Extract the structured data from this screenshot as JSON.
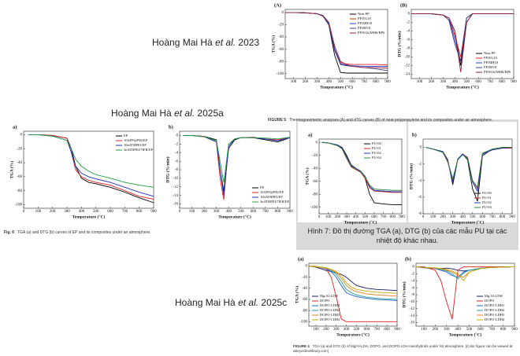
{
  "authors": [
    [
      "Hoàng Mai Hà",
      "et al.",
      "2023"
    ],
    [
      "Hoàng Mai Hà",
      "et al.",
      "2025a"
    ],
    [
      "Hoàng Mai Hà",
      "et al.",
      "2025c"
    ]
  ],
  "captions": [
    {
      "label": "FIGURE 5",
      "text": "Thermogravimetric analyses (A) and dTG curves (B) of neat polypropylene and its composites under air atmosphere."
    },
    {
      "label": "Fig. 6",
      "text": "TGA (a) and DTG (b) curves of EP and its composites under air atmosphere."
    },
    {
      "label": "Hình 7:",
      "text": "Đồ thị đường TGA (a), DTG (b) của các mẫu PU tại các nhiệt độ khác nhau."
    },
    {
      "label": "FIGURE 4",
      "text": "TGA (a) and DTG (b) of Mg/Al-LDH, DOPO, and DOPO-LDH nanohybrids under N2 atmosphere. [Color figure can be viewed at wileyonlinelibrary.com]"
    }
  ],
  "chart_data": [
    {
      "type": "line",
      "panel": "(A)",
      "xlabel": "Temperature (°C)",
      "ylabel": "TGA (%)",
      "legend": "upper right",
      "x": [
        30,
        100,
        200,
        300,
        350,
        400,
        450,
        500,
        550,
        600,
        700,
        800,
        900
      ],
      "xlim": [
        30,
        900
      ],
      "xticks": [
        100,
        200,
        300,
        400,
        500,
        600,
        700,
        800,
        900
      ],
      "ylim": [
        -108,
        5
      ],
      "yticks": [
        0,
        -20,
        -40,
        -60,
        -80,
        -100
      ],
      "series": [
        {
          "name": "Neat PP",
          "color": "#000000",
          "values": [
            0,
            0,
            -0.5,
            -2,
            -5,
            -20,
            -70,
            -98,
            -99,
            -99,
            -99,
            -99,
            -99
          ]
        },
        {
          "name": "PP/EG18",
          "color": "#e02020",
          "values": [
            0,
            0,
            -0.5,
            -2,
            -5,
            -18,
            -60,
            -82,
            -84,
            -85,
            -85,
            -85,
            -86
          ]
        },
        {
          "name": "PP/MH18",
          "color": "#2040d0",
          "values": [
            0,
            0,
            -0.5,
            -2,
            -5,
            -18,
            -60,
            -84,
            -86,
            -87,
            -88,
            -88,
            -88
          ]
        },
        {
          "name": "PP/RP18",
          "color": "#404080",
          "values": [
            0,
            0,
            -0.5,
            -2,
            -6,
            -20,
            -62,
            -85,
            -87,
            -88,
            -90,
            -92,
            -95
          ]
        },
        {
          "name": "PP/EG6/MH6/RP6",
          "color": "#902040",
          "values": [
            0,
            0,
            -0.5,
            -2,
            -5,
            -16,
            -55,
            -80,
            -85,
            -88,
            -90,
            -90,
            -91
          ]
        }
      ]
    },
    {
      "type": "line",
      "panel": "(B)",
      "xlabel": "Temperature (°C)",
      "ylabel": "DTG (%/min)",
      "legend": "lower right",
      "x": [
        30,
        100,
        200,
        300,
        350,
        400,
        450,
        500,
        550,
        600,
        700,
        800,
        900
      ],
      "xlim": [
        30,
        900
      ],
      "xticks": [
        100,
        200,
        300,
        400,
        500,
        600,
        700,
        800,
        900
      ],
      "ylim": [
        -15,
        1
      ],
      "yticks": [
        0,
        -2,
        -4,
        -6,
        -8,
        -10,
        -12,
        -14
      ],
      "series": [
        {
          "name": "Neat PP",
          "color": "#000000",
          "values": [
            0,
            0,
            0,
            -0.3,
            -1,
            -4,
            -12,
            -2,
            0,
            0,
            0,
            0,
            0
          ]
        },
        {
          "name": "PP/EG18",
          "color": "#e02020",
          "values": [
            0,
            0,
            0,
            -0.3,
            -1,
            -5,
            -10,
            -1,
            0,
            0,
            0,
            0,
            0
          ]
        },
        {
          "name": "PP/MH18",
          "color": "#2040d0",
          "values": [
            0,
            0,
            0,
            -0.3,
            -1,
            -6,
            -11,
            -1,
            0,
            0,
            0,
            0,
            0
          ]
        },
        {
          "name": "PP/RP18",
          "color": "#404080",
          "values": [
            0,
            0,
            0,
            -0.3,
            -1.5,
            -7,
            -11,
            -1,
            0,
            0,
            0,
            0,
            0
          ]
        },
        {
          "name": "PP/EG6/MH6/RP6",
          "color": "#902040",
          "values": [
            0,
            0,
            0,
            -0.3,
            -1,
            -4,
            -13.5,
            -2,
            0,
            0,
            0,
            0,
            0
          ]
        }
      ]
    },
    {
      "type": "line",
      "panel": "a)",
      "xlabel": "Temperature (°C)",
      "ylabel": "TGA (%)",
      "legend": "upper right",
      "x": [
        30,
        100,
        200,
        300,
        330,
        360,
        400,
        450,
        500,
        600,
        700,
        800,
        900
      ],
      "xlim": [
        0,
        900
      ],
      "xticks": [
        0,
        100,
        200,
        300,
        400,
        500,
        600,
        700,
        800,
        900
      ],
      "ylim": [
        -105,
        5
      ],
      "yticks": [
        0,
        -20,
        -40,
        -60,
        -80,
        -100
      ],
      "series": [
        {
          "name": "EP",
          "color": "#000000",
          "values": [
            0,
            0,
            -1,
            -5,
            -20,
            -45,
            -62,
            -68,
            -70,
            -75,
            -82,
            -90,
            -97
          ]
        },
        {
          "name": "10APP@PEI/EP",
          "color": "#e02020",
          "values": [
            0,
            0,
            -1,
            -5,
            -25,
            -50,
            -60,
            -65,
            -68,
            -72,
            -80,
            -88,
            -92
          ]
        },
        {
          "name": "10nATHPEI/EP",
          "color": "#2030c0",
          "values": [
            0,
            0,
            -2,
            -8,
            -25,
            -45,
            -55,
            -60,
            -63,
            -68,
            -75,
            -82,
            -88
          ]
        },
        {
          "name": "3nATHPEI/7IFR/EP",
          "color": "#20a040",
          "values": [
            0,
            0,
            -2,
            -8,
            -20,
            -35,
            -45,
            -52,
            -57,
            -62,
            -68,
            -72,
            -75
          ]
        }
      ]
    },
    {
      "type": "line",
      "panel": "b)",
      "xlabel": "Temperature (°C)",
      "ylabel": "DTG (%/min)",
      "legend": "lower right",
      "x": [
        30,
        100,
        200,
        300,
        330,
        360,
        400,
        450,
        500,
        600,
        700,
        800,
        900
      ],
      "xlim": [
        0,
        900
      ],
      "xticks": [
        0,
        100,
        200,
        300,
        400,
        500,
        600,
        700,
        800,
        900
      ],
      "ylim": [
        -17,
        1
      ],
      "yticks": [
        0,
        -2,
        -4,
        -6,
        -8,
        -10,
        -12,
        -14,
        -16
      ],
      "series": [
        {
          "name": "EP",
          "color": "#000000",
          "values": [
            0,
            0,
            -0.2,
            -1,
            -8,
            -13,
            -3,
            -1,
            -0.5,
            -0.5,
            -1,
            -1.5,
            -0.5
          ]
        },
        {
          "name": "10APP@PEI/EP",
          "color": "#e02020",
          "values": [
            0,
            0,
            -0.2,
            -1.5,
            -10,
            -15,
            -2,
            -0.8,
            -0.5,
            -0.4,
            -0.8,
            -1,
            -0.5
          ]
        },
        {
          "name": "10nATHPEI/EP",
          "color": "#2030c0",
          "values": [
            0,
            0,
            -0.3,
            -1.5,
            -8,
            -14,
            -2.5,
            -0.8,
            -0.5,
            -0.5,
            -0.8,
            -1.2,
            -0.5
          ]
        },
        {
          "name": "3nATHPEI/7IFR/EP",
          "color": "#20a040",
          "values": [
            0,
            0,
            -0.3,
            -1.2,
            -6,
            -11,
            -2,
            -0.8,
            -0.5,
            -0.5,
            -0.6,
            -0.8,
            -0.4
          ]
        }
      ]
    },
    {
      "type": "line",
      "panel": "a)",
      "xlabel": "Temperature (°C)",
      "ylabel": "TGA (%)",
      "legend": "upper right",
      "x": [
        30,
        100,
        200,
        250,
        300,
        350,
        400,
        450,
        500,
        550,
        600,
        700,
        800,
        900
      ],
      "xlim": [
        0,
        900
      ],
      "xticks": [
        0,
        100,
        200,
        300,
        400,
        500,
        600,
        700,
        800,
        900
      ],
      "ylim": [
        -110,
        5
      ],
      "yticks": [
        0,
        -20,
        -40,
        -60,
        -80,
        -100
      ],
      "series": [
        {
          "name": "PU-00",
          "color": "#000000",
          "values": [
            0,
            -1,
            -4,
            -8,
            -20,
            -35,
            -40,
            -45,
            -55,
            -80,
            -93,
            -95,
            -96,
            -96
          ]
        },
        {
          "name": "PU-01",
          "color": "#d02020",
          "values": [
            0,
            -1,
            -5,
            -10,
            -25,
            -38,
            -42,
            -46,
            -55,
            -70,
            -75,
            -76,
            -77,
            -77
          ]
        },
        {
          "name": "PU-02",
          "color": "#2030c0",
          "values": [
            0,
            -1,
            -4,
            -9,
            -22,
            -36,
            -40,
            -44,
            -52,
            -68,
            -74,
            -75,
            -76,
            -76
          ]
        },
        {
          "name": "PU-04",
          "color": "#308040",
          "values": [
            0,
            -1,
            -5,
            -10,
            -24,
            -37,
            -41,
            -45,
            -53,
            -66,
            -72,
            -73,
            -74,
            -74
          ]
        }
      ]
    },
    {
      "type": "line",
      "panel": "b)",
      "xlabel": "Temperature (°C)",
      "ylabel": "DTG (%/min)",
      "legend": "lower right",
      "x": [
        30,
        100,
        200,
        250,
        300,
        350,
        400,
        450,
        500,
        550,
        600,
        700,
        800,
        900
      ],
      "xlim": [
        0,
        900
      ],
      "xticks": [
        0,
        100,
        200,
        300,
        400,
        500,
        600,
        700,
        800,
        900
      ],
      "ylim": [
        -8,
        1
      ],
      "yticks": [
        0,
        -2,
        -4,
        -6,
        -8
      ],
      "series": [
        {
          "name": "PU-00",
          "color": "#000000",
          "values": [
            0,
            -0.2,
            -0.5,
            -1.5,
            -4.5,
            -1.5,
            -0.8,
            -1.5,
            -5,
            -6.5,
            -1,
            -0.2,
            0,
            0
          ]
        },
        {
          "name": "PU-01",
          "color": "#d02020",
          "values": [
            0,
            -0.2,
            -0.6,
            -1.8,
            -4,
            -1.5,
            -0.8,
            -1.2,
            -4,
            -5,
            -0.8,
            -0.3,
            -0.1,
            -0.1
          ]
        },
        {
          "name": "PU-02",
          "color": "#2030c0",
          "values": [
            0,
            -0.2,
            -0.5,
            -1.6,
            -4.2,
            -1.4,
            -0.8,
            -1.3,
            -4.2,
            -5.3,
            -0.8,
            -0.3,
            -0.1,
            0
          ]
        },
        {
          "name": "PU-04",
          "color": "#308040",
          "values": [
            0,
            -0.2,
            -0.6,
            -1.7,
            -3.8,
            -1.5,
            -0.9,
            -1.3,
            -4,
            -4.8,
            -0.7,
            -0.2,
            0,
            0
          ]
        }
      ]
    },
    {
      "type": "line",
      "panel": "(a)",
      "xlabel": "Temperature (°C)",
      "ylabel": "TGA (%)",
      "legend": "lower left",
      "x": [
        30,
        100,
        200,
        250,
        300,
        350,
        400,
        450,
        500,
        600,
        700,
        800,
        900
      ],
      "xlim": [
        30,
        900
      ],
      "xticks": [
        100,
        200,
        300,
        400,
        500,
        600,
        700,
        800,
        900
      ],
      "ylim": [
        -108,
        5
      ],
      "yticks": [
        0,
        -20,
        -40,
        -60,
        -80,
        -100
      ],
      "series": [
        {
          "name": "Mg/Al-LDH",
          "color": "#1a1a60",
          "values": [
            0,
            -2,
            -8,
            -10,
            -12,
            -15,
            -20,
            -28,
            -35,
            -40,
            -42,
            -43,
            -44
          ]
        },
        {
          "name": "DOPO",
          "color": "#e02020",
          "values": [
            0,
            -0.5,
            -5,
            -20,
            -55,
            -95,
            -100,
            -100,
            -100,
            -100,
            -100,
            -100,
            -100
          ]
        },
        {
          "name": "DOPO-LDH1",
          "color": "#2060d0",
          "values": [
            0,
            -1,
            -5,
            -10,
            -20,
            -35,
            -48,
            -52,
            -55,
            -58,
            -60,
            -61,
            -62
          ]
        },
        {
          "name": "DOPO-LDH2",
          "color": "#20a0a0",
          "values": [
            0,
            -1,
            -4,
            -8,
            -15,
            -28,
            -42,
            -48,
            -52,
            -56,
            -58,
            -59,
            -60
          ]
        },
        {
          "name": "DOPO-LDH3",
          "color": "#e08020",
          "values": [
            0,
            -1,
            -4,
            -7,
            -12,
            -22,
            -35,
            -42,
            -46,
            -50,
            -52,
            -53,
            -54
          ]
        },
        {
          "name": "DOPO-LDH4",
          "color": "#c8a800",
          "values": [
            0,
            -1,
            -3,
            -6,
            -10,
            -18,
            -30,
            -38,
            -42,
            -45,
            -47,
            -48,
            -49
          ]
        }
      ]
    },
    {
      "type": "line",
      "panel": "(b)",
      "xlabel": "Temperature (°C)",
      "ylabel": "DTG (%/min)",
      "legend": "lower right",
      "x": [
        30,
        100,
        200,
        250,
        300,
        350,
        400,
        450,
        500,
        600,
        700,
        800,
        900
      ],
      "xlim": [
        30,
        900
      ],
      "xticks": [
        100,
        200,
        300,
        400,
        500,
        600,
        700,
        800,
        900
      ],
      "ylim": [
        -17,
        1
      ],
      "yticks": [
        0,
        -2,
        -4,
        -6,
        -8,
        -10,
        -12,
        -14,
        -16
      ],
      "series": [
        {
          "name": "Mg/Al-LDH",
          "color": "#1a1a60",
          "values": [
            0,
            -0.3,
            -0.5,
            -0.5,
            -0.4,
            -0.6,
            -1,
            -1.2,
            -1,
            -0.5,
            -0.2,
            -0.1,
            0
          ]
        },
        {
          "name": "DOPO",
          "color": "#e02020",
          "values": [
            0,
            0,
            -1,
            -4,
            -10,
            -15,
            -1,
            0,
            0,
            0,
            0,
            0,
            0
          ]
        },
        {
          "name": "DOPO-LDH1",
          "color": "#2060d0",
          "values": [
            0,
            -0.2,
            -0.5,
            -1,
            -1.5,
            -2.5,
            -3,
            -1.5,
            -1,
            -0.4,
            -0.2,
            -0.1,
            0
          ]
        },
        {
          "name": "DOPO-LDH2",
          "color": "#20a0a0",
          "values": [
            0,
            -0.2,
            -0.4,
            -0.8,
            -1.2,
            -2,
            -3.5,
            -1.8,
            -1,
            -0.4,
            -0.2,
            -0.1,
            0
          ]
        },
        {
          "name": "DOPO-LDH3",
          "color": "#e08020",
          "values": [
            0,
            -0.2,
            -0.4,
            -0.6,
            -1,
            -1.5,
            -2.5,
            -3,
            -1.5,
            -0.5,
            -0.2,
            -0.1,
            0
          ]
        },
        {
          "name": "DOPO-LDH4",
          "color": "#c8a800",
          "values": [
            0,
            -0.2,
            -0.3,
            -0.5,
            -0.8,
            -1.2,
            -2,
            -4,
            -1.5,
            -0.5,
            -0.2,
            -0.1,
            0
          ]
        }
      ]
    }
  ]
}
